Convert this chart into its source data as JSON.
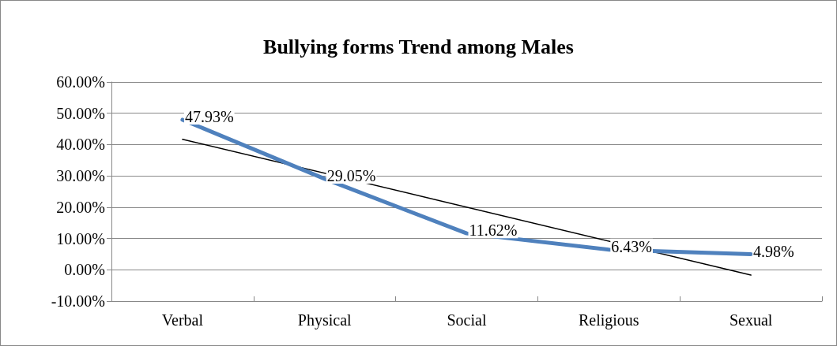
{
  "chart_data": {
    "type": "line",
    "title": "Bullying forms Trend among Males",
    "categories": [
      "Verbal",
      "Physical",
      "Social",
      "Religious",
      "Sexual"
    ],
    "series": [
      {
        "color": "#4f81bd",
        "values": [
          47.93,
          29.05,
          11.62,
          6.43,
          4.98
        ],
        "value_labels": [
          "47.93%",
          "29.05%",
          "11.62%",
          "6.43%",
          "4.98%"
        ]
      },
      {
        "type": "line",
        "color": "#000000",
        "x": [
          "Verbal",
          "Sexual"
        ],
        "values": [
          41.7,
          -1.7
        ]
      }
    ],
    "ylim": [
      -10,
      60
    ],
    "yticks": [
      {
        "value": -10,
        "label": "-10.00%"
      },
      {
        "value": 0,
        "label": "0.00%"
      },
      {
        "value": 10,
        "label": "10.00%"
      },
      {
        "value": 20,
        "label": "20.00%"
      },
      {
        "value": 30,
        "label": "30.00%"
      },
      {
        "value": 40,
        "label": "40.00%"
      },
      {
        "value": 50,
        "label": "50.00%"
      },
      {
        "value": 60,
        "label": "60.00%"
      }
    ],
    "grid": "y",
    "marker": "none",
    "line_style": "solid"
  }
}
